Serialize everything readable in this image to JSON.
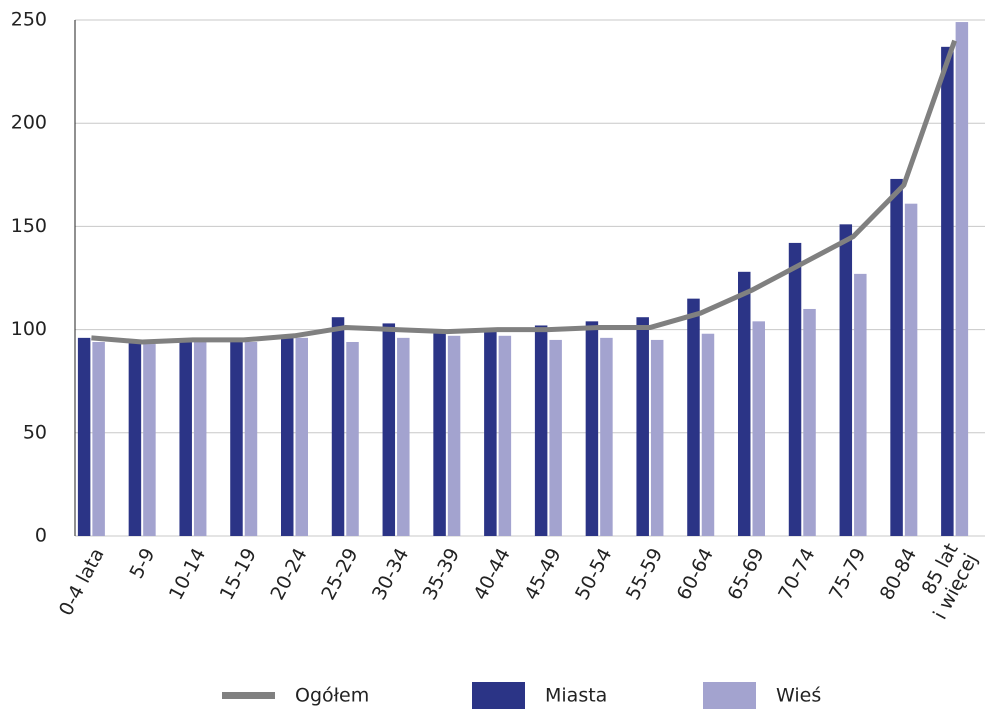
{
  "chart_data": {
    "type": "bar_line",
    "categories": [
      "0-4 lata",
      "5-9",
      "10-14",
      "15-19",
      "20-24",
      "25-29",
      "30-34",
      "35-39",
      "40-44",
      "45-49",
      "50-54",
      "55-59",
      "60-64",
      "65-69",
      "70-74",
      "75-79",
      "80-84",
      "85 lat\ni więcej"
    ],
    "series": [
      {
        "name": "Ogółem",
        "type": "line",
        "color": "#808080",
        "values": [
          96,
          94,
          95,
          95,
          97,
          101,
          100,
          99,
          100,
          100,
          101,
          101,
          108,
          119,
          132,
          145,
          170,
          240
        ]
      },
      {
        "name": "Miasta",
        "type": "bar",
        "color": "#2b3486",
        "values": [
          96,
          94,
          95,
          95,
          97,
          106,
          103,
          99,
          100,
          102,
          104,
          106,
          115,
          128,
          142,
          151,
          173,
          237
        ]
      },
      {
        "name": "Wieś",
        "type": "bar",
        "color": "#a3a3cf",
        "values": [
          94,
          93,
          94,
          94,
          96,
          94,
          96,
          97,
          97,
          95,
          96,
          95,
          98,
          104,
          110,
          127,
          161,
          249
        ]
      }
    ],
    "ylim": [
      0,
      250
    ],
    "yticks": [
      0,
      50,
      100,
      150,
      200,
      250
    ],
    "grid": true,
    "legend": "bottom"
  }
}
